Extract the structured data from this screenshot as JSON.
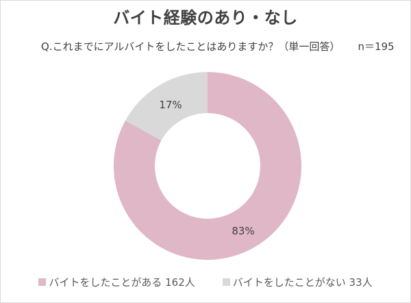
{
  "title": "バイト経験のあり・なし",
  "question": "Q.これまでにアルバイトをしたことはありますか？（単一回答）",
  "sample_size": "n＝195",
  "legend": [
    {
      "label": "バイトをしたことがある 162人",
      "color": "#dfb7c6"
    },
    {
      "label": "バイトをしたことがない 33人",
      "color": "#d9d9d9"
    }
  ],
  "data_labels": {
    "yes": "83%",
    "no": "17%"
  },
  "chart_data": {
    "type": "pie",
    "subtype": "donut",
    "title": "バイト経験のあり・なし",
    "subtitle": "Q.これまでにアルバイトをしたことはありますか？（単一回答） n＝195",
    "categories": [
      "バイトをしたことがある",
      "バイトをしたことがない"
    ],
    "values": [
      83,
      17
    ],
    "counts": [
      162,
      33
    ],
    "total": 195,
    "unit": "%",
    "colors": [
      "#dfb7c6",
      "#d9d9d9"
    ],
    "legend_position": "bottom",
    "start_angle": "12 o'clock, clockwise"
  }
}
